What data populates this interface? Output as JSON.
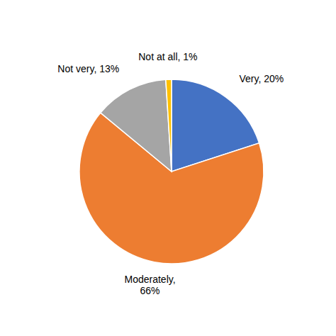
{
  "chart_data": {
    "type": "pie",
    "values": [
      20,
      66,
      13,
      1
    ],
    "value_labels": [
      "Very, 20%",
      "Moderately,\n66%",
      "Not very, 13%",
      "Not at all, 1%"
    ],
    "colors": [
      "#4472C4",
      "#ED7D31",
      "#A5A5A5",
      "#FFC000"
    ],
    "data_labels": true
  }
}
